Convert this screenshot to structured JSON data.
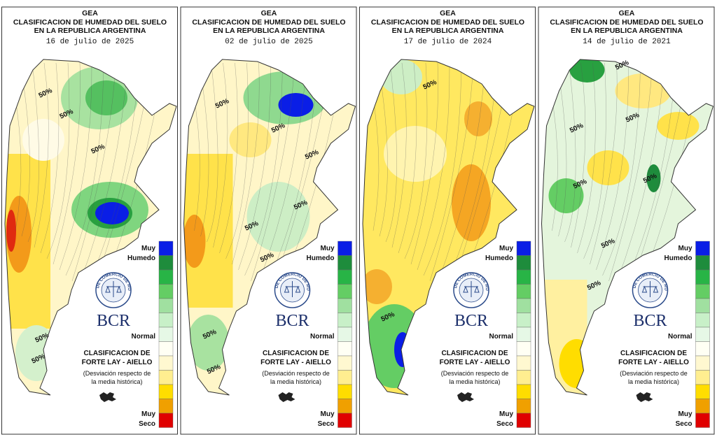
{
  "panels": [
    {
      "header": {
        "org": "GEA",
        "title_line1": "CLASIFICACION DE HUMEDAD DEL SUELO",
        "title_line2": "EN LA REPUBLICA ARGENTINA",
        "date": "16 de julio de 2025"
      },
      "contour_labels": [
        "50%",
        "50%",
        "50%",
        "50%",
        "50%"
      ],
      "legend": {
        "top": [
          "Muy",
          "Humedo"
        ],
        "middle": "Normal",
        "bottom": [
          "Muy",
          "Seco"
        ]
      },
      "logo": {
        "seal": "BOLSA DE COMERCIO DE ROSARIO",
        "name": "BCR"
      },
      "method": [
        "CLASIFICACION DE",
        "FORTE LAY - AIELLO",
        "(Desviación respecto de",
        "la media histórica)"
      ]
    },
    {
      "header": {
        "org": "GEA",
        "title_line1": "CLASIFICACION DE HUMEDAD DEL SUELO",
        "title_line2": "EN LA REPUBLICA ARGENTINA",
        "date": "02 de julio de 2025"
      },
      "contour_labels": [
        "50%",
        "50%",
        "50%",
        "50%",
        "50%",
        "50%",
        "50%",
        "50%"
      ],
      "legend": {
        "top": [
          "Muy",
          "Humedo"
        ],
        "middle": "Normal",
        "bottom": [
          "Muy",
          "Seco"
        ]
      },
      "logo": {
        "seal": "BOLSA DE COMERCIO DE ROSARIO",
        "name": "BCR"
      },
      "method": [
        "CLASIFICACION DE",
        "FORTE LAY - AIELLO",
        "(Desviación respecto de",
        "la media histórica)"
      ]
    },
    {
      "header": {
        "org": "GEA",
        "title_line1": "CLASIFICACION DE HUMEDAD DEL SUELO",
        "title_line2": "EN LA REPUBLICA ARGENTINA",
        "date": "17 de julio de 2024"
      },
      "contour_labels": [
        "50%",
        "50%"
      ],
      "legend": {
        "top": [
          "Muy",
          "Humedo"
        ],
        "middle": "Normal",
        "bottom": [
          "Muy",
          "Seco"
        ]
      },
      "logo": {
        "seal": "BOLSA DE COMERCIO DE ROSARIO",
        "name": "BCR"
      },
      "method": [
        "CLASIFICACION DE",
        "FORTE LAY - AIELLO",
        "(Desviación respecto de",
        "la media histórica)"
      ]
    },
    {
      "header": {
        "org": "GEA",
        "title_line1": "CLASIFICACION DE HUMEDAD DEL SUELO",
        "title_line2": "EN LA REPUBLICA ARGENTINA",
        "date": "14 de julio de 2021"
      },
      "contour_labels": [
        "50%",
        "50%",
        "50%",
        "50%",
        "50%",
        "50%",
        "50%"
      ],
      "legend": {
        "top": [
          "Muy",
          "Humedo"
        ],
        "middle": "Normal",
        "bottom": [
          "Muy",
          "Seco"
        ]
      },
      "logo": {
        "seal": "BOLSA DE COMERCIO DE ROSARIO",
        "name": "BCR"
      },
      "method": [
        "CLASIFICACION DE",
        "FORTE LAY - AIELLO",
        "(Desviación respecto de",
        "la media histórica)"
      ]
    }
  ],
  "legend_colors": [
    "#0a1ee6",
    "#1e8c3c",
    "#28b446",
    "#64cd64",
    "#a0e0a0",
    "#c8f0c8",
    "#e6f8e6",
    "#fffff4",
    "#fff8d0",
    "#ffee90",
    "#ffdd00",
    "#f0a000",
    "#e00000"
  ]
}
